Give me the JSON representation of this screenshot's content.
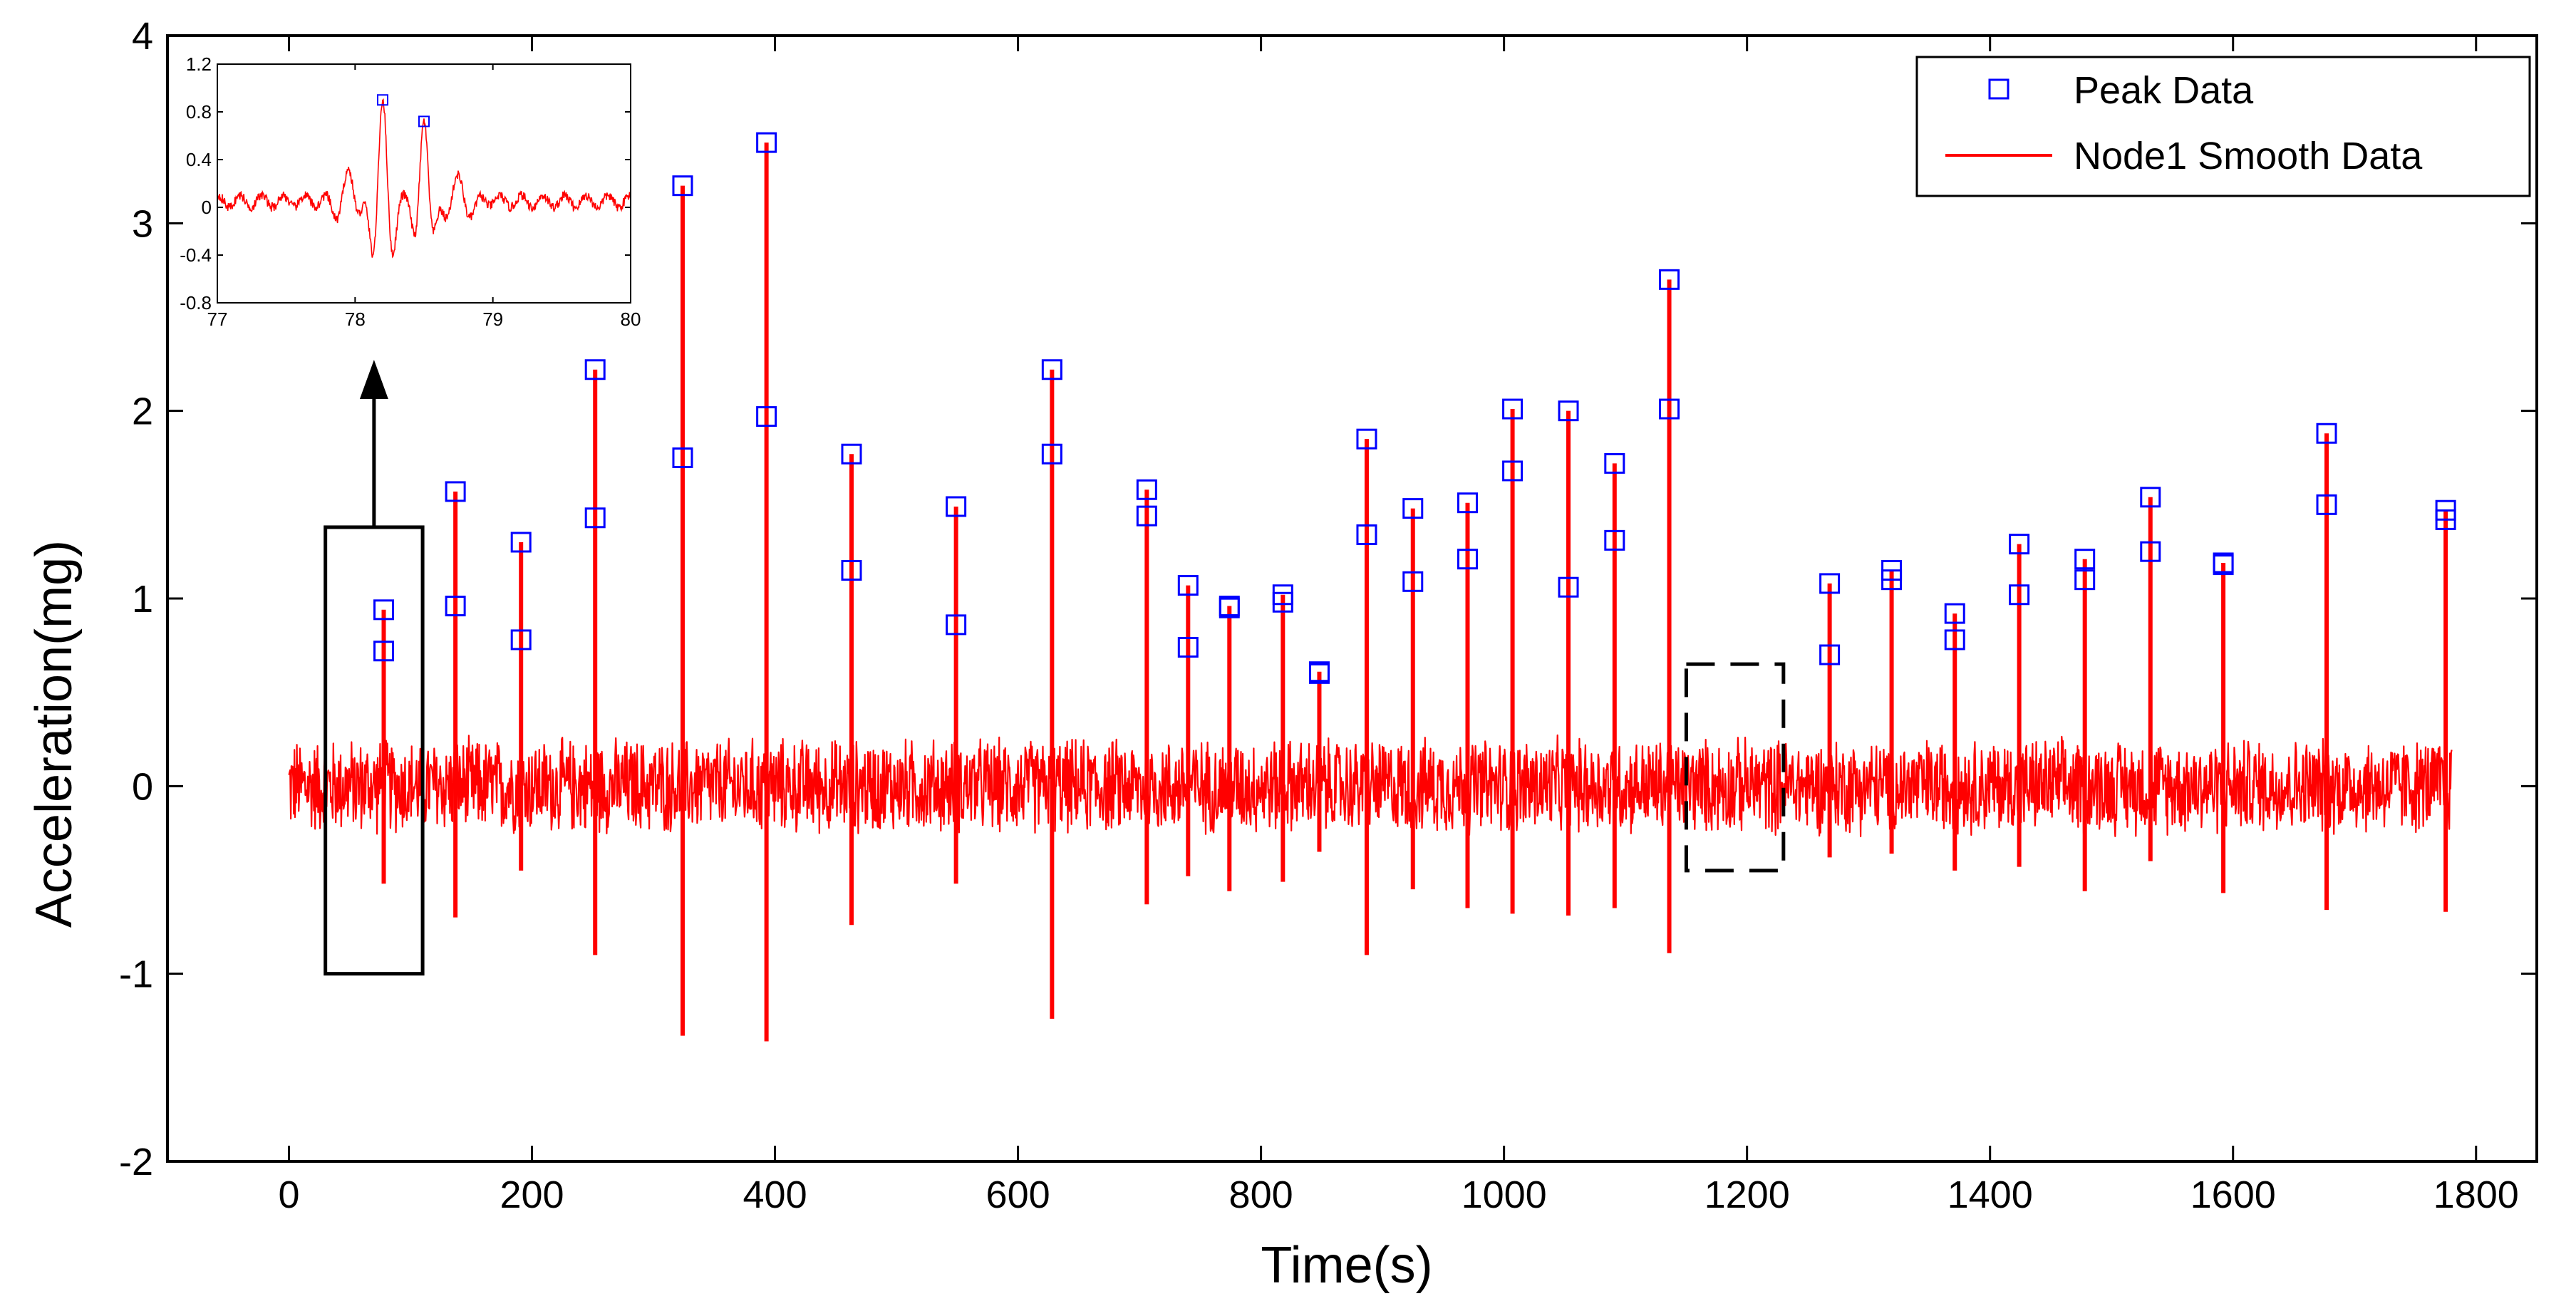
{
  "chart_data": {
    "type": "line",
    "title": "",
    "xlabel": "Time(s)",
    "ylabel": "Acceleration(mg)",
    "xlim": [
      -100,
      1850
    ],
    "ylim": [
      -2,
      4
    ],
    "x_ticks": [
      0,
      200,
      400,
      600,
      800,
      1000,
      1200,
      1400,
      1600,
      1800
    ],
    "y_ticks": [
      -2,
      -1,
      0,
      1,
      2,
      3,
      4
    ],
    "x_tick_labels": [
      "0",
      "200",
      "400",
      "600",
      "800",
      "1000",
      "1200",
      "1400",
      "1600",
      "1800"
    ],
    "y_tick_labels": [
      "-2",
      "-1",
      "0",
      "1",
      "2",
      "3",
      "4"
    ],
    "grid": false,
    "legend_position": "top-right",
    "series": [
      {
        "name": "Peak Data",
        "style": "marker-square",
        "color": "#0000ff",
        "points": [
          [
            78,
            0.94
          ],
          [
            78,
            0.72
          ],
          [
            137,
            1.57
          ],
          [
            137,
            0.96
          ],
          [
            191,
            1.3
          ],
          [
            191,
            0.78
          ],
          [
            252,
            2.22
          ],
          [
            252,
            1.43
          ],
          [
            324,
            3.2
          ],
          [
            324,
            1.75
          ],
          [
            393,
            3.43
          ],
          [
            393,
            1.97
          ],
          [
            463,
            1.77
          ],
          [
            463,
            1.15
          ],
          [
            549,
            1.49
          ],
          [
            549,
            0.86
          ],
          [
            628,
            2.22
          ],
          [
            628,
            1.77
          ],
          [
            706,
            1.58
          ],
          [
            706,
            1.44
          ],
          [
            740,
            1.07
          ],
          [
            740,
            0.74
          ],
          [
            774,
            0.96
          ],
          [
            774,
            0.95
          ],
          [
            818,
            1.02
          ],
          [
            818,
            0.98
          ],
          [
            848,
            0.61
          ],
          [
            848,
            0.6
          ],
          [
            887,
            1.85
          ],
          [
            887,
            1.34
          ],
          [
            925,
            1.48
          ],
          [
            925,
            1.09
          ],
          [
            970,
            1.51
          ],
          [
            970,
            1.21
          ],
          [
            1007,
            2.01
          ],
          [
            1007,
            1.68
          ],
          [
            1053,
            2.0
          ],
          [
            1053,
            1.06
          ],
          [
            1091,
            1.72
          ],
          [
            1091,
            1.31
          ],
          [
            1136,
            2.7
          ],
          [
            1136,
            2.01
          ],
          [
            1268,
            1.08
          ],
          [
            1268,
            0.7
          ],
          [
            1319,
            1.15
          ],
          [
            1319,
            1.1
          ],
          [
            1371,
            0.92
          ],
          [
            1371,
            0.78
          ],
          [
            1424,
            1.29
          ],
          [
            1424,
            1.02
          ],
          [
            1478,
            1.21
          ],
          [
            1478,
            1.1
          ],
          [
            1532,
            1.54
          ],
          [
            1532,
            1.25
          ],
          [
            1592,
            1.19
          ],
          [
            1592,
            1.18
          ],
          [
            1677,
            1.88
          ],
          [
            1677,
            1.5
          ],
          [
            1775,
            1.47
          ],
          [
            1775,
            1.42
          ]
        ]
      },
      {
        "name": "Node1 Smooth Data",
        "style": "line",
        "color": "#ff0000",
        "noise_amplitude": 0.28,
        "time_range": [
          0,
          1780
        ],
        "spikes": [
          [
            78,
            0.94,
            -0.52
          ],
          [
            137,
            1.57,
            -0.7
          ],
          [
            191,
            1.3,
            -0.45
          ],
          [
            252,
            2.22,
            -0.9
          ],
          [
            324,
            3.2,
            -1.33
          ],
          [
            393,
            3.43,
            -1.36
          ],
          [
            463,
            1.77,
            -0.74
          ],
          [
            549,
            1.49,
            -0.52
          ],
          [
            628,
            2.22,
            -1.24
          ],
          [
            706,
            1.58,
            -0.63
          ],
          [
            740,
            1.07,
            -0.48
          ],
          [
            774,
            0.96,
            -0.56
          ],
          [
            818,
            1.02,
            -0.51
          ],
          [
            848,
            0.61,
            -0.35
          ],
          [
            887,
            1.85,
            -0.9
          ],
          [
            925,
            1.48,
            -0.55
          ],
          [
            970,
            1.51,
            -0.65
          ],
          [
            1007,
            2.01,
            -0.68
          ],
          [
            1053,
            2.0,
            -0.69
          ],
          [
            1091,
            1.72,
            -0.65
          ],
          [
            1136,
            2.7,
            -0.89
          ],
          [
            1268,
            1.08,
            -0.38
          ],
          [
            1319,
            1.15,
            -0.36
          ],
          [
            1371,
            0.92,
            -0.45
          ],
          [
            1424,
            1.29,
            -0.43
          ],
          [
            1478,
            1.21,
            -0.56
          ],
          [
            1532,
            1.54,
            -0.4
          ],
          [
            1592,
            1.19,
            -0.57
          ],
          [
            1677,
            1.88,
            -0.66
          ],
          [
            1775,
            1.47,
            -0.67
          ]
        ]
      }
    ],
    "annotations": [
      {
        "type": "box-solid",
        "x_range": [
          30,
          110
        ],
        "y_range": [
          -1.0,
          1.38
        ],
        "note": "zoom region"
      },
      {
        "type": "box-dashed",
        "x_range": [
          1150,
          1230
        ],
        "y_range": [
          -0.45,
          0.65
        ]
      },
      {
        "type": "arrow",
        "from": "zoom region",
        "to": "inset"
      }
    ],
    "inset": {
      "type": "line",
      "xlim": [
        77,
        80
      ],
      "ylim": [
        -0.8,
        1.2
      ],
      "x_ticks": [
        77,
        78,
        79,
        80
      ],
      "y_ticks": [
        -0.8,
        -0.4,
        0,
        0.4,
        0.8,
        1.2
      ],
      "x_tick_labels": [
        "77",
        "78",
        "79",
        "80"
      ],
      "y_tick_labels": [
        "-0.8",
        "-0.4",
        "0",
        "0.4",
        "0.8",
        "1.2"
      ],
      "peaks": [
        [
          78.2,
          0.9
        ],
        [
          78.5,
          0.72
        ]
      ],
      "troughs": [
        [
          78.18,
          -0.5
        ],
        [
          78.42,
          -0.45
        ]
      ]
    }
  }
}
